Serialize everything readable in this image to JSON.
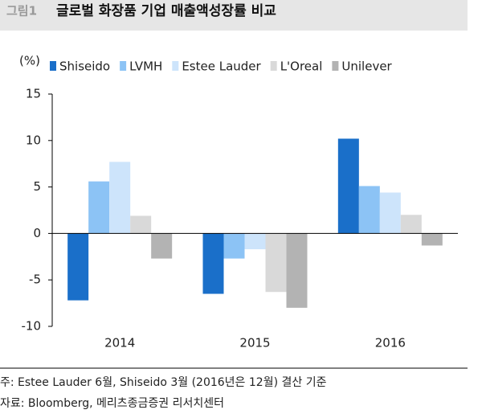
{
  "chart_data": {
    "type": "bar",
    "figure_label": "그림1",
    "title": "글로벌 화장품 기업 매출액성장률 비교",
    "y_unit": "(%)",
    "categories": [
      "2014",
      "2015",
      "2016"
    ],
    "series": [
      {
        "name": "Shiseido",
        "color": "#1a6fc9",
        "values": [
          -7.2,
          -6.5,
          10.2
        ]
      },
      {
        "name": "LVMH",
        "color": "#8cc3f5",
        "values": [
          5.6,
          -2.7,
          5.1
        ]
      },
      {
        "name": "Estee Lauder",
        "color": "#cde4fb",
        "values": [
          7.7,
          -1.7,
          4.4
        ]
      },
      {
        "name": "L'Oreal",
        "color": "#d9d9d9",
        "values": [
          1.9,
          -6.3,
          2.0
        ]
      },
      {
        "name": "Unilever",
        "color": "#b3b3b3",
        "values": [
          -2.7,
          -8.0,
          -1.3
        ]
      }
    ],
    "ylim": [
      -10,
      15
    ],
    "yticks": [
      -10,
      -5,
      0,
      5,
      10,
      15
    ],
    "grid": false,
    "notes": [
      "주: Estee Lauder 6월, Shiseido 3월 (2016년은 12월) 결산 기준",
      "자료: Bloomberg, 메리츠종금증권 리서치센터"
    ]
  }
}
